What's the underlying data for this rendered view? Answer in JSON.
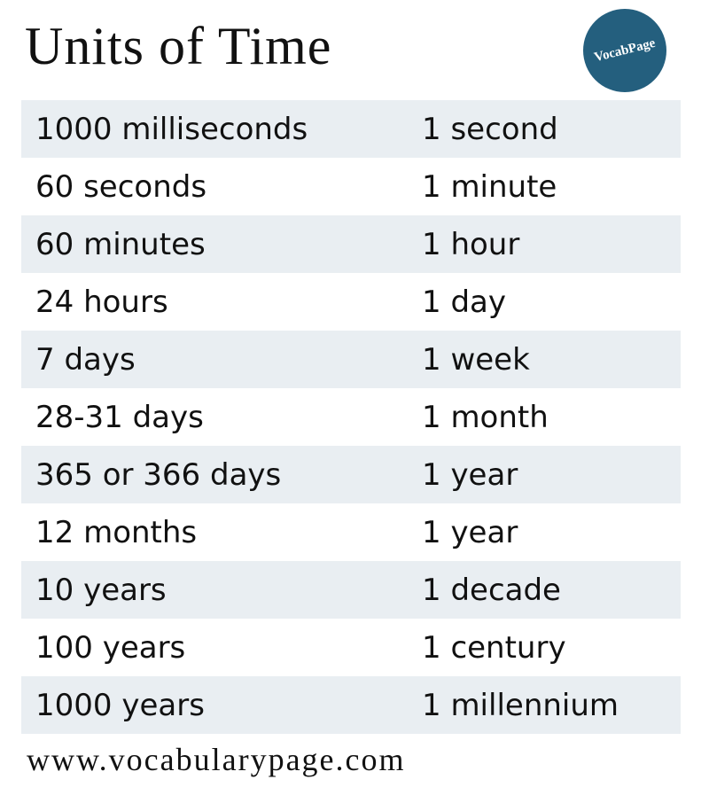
{
  "header": {
    "title": "Units of Time"
  },
  "logo": {
    "text": "VocabPage"
  },
  "table": {
    "rows": [
      [
        "1000 milliseconds",
        "1 second"
      ],
      [
        "60 seconds",
        "1 minute"
      ],
      [
        "60 minutes",
        "1 hour"
      ],
      [
        "24 hours",
        "1 day"
      ],
      [
        "7 days",
        "1 week"
      ],
      [
        "28-31 days",
        "1 month"
      ],
      [
        "365 or 366 days",
        "1 year"
      ],
      [
        "12 months",
        "1 year"
      ],
      [
        "10 years",
        "1 decade"
      ],
      [
        "100 years",
        "1 century"
      ],
      [
        "1000 years",
        "1 millennium"
      ]
    ]
  },
  "footer": {
    "url": "www.vocabularypage.com"
  }
}
